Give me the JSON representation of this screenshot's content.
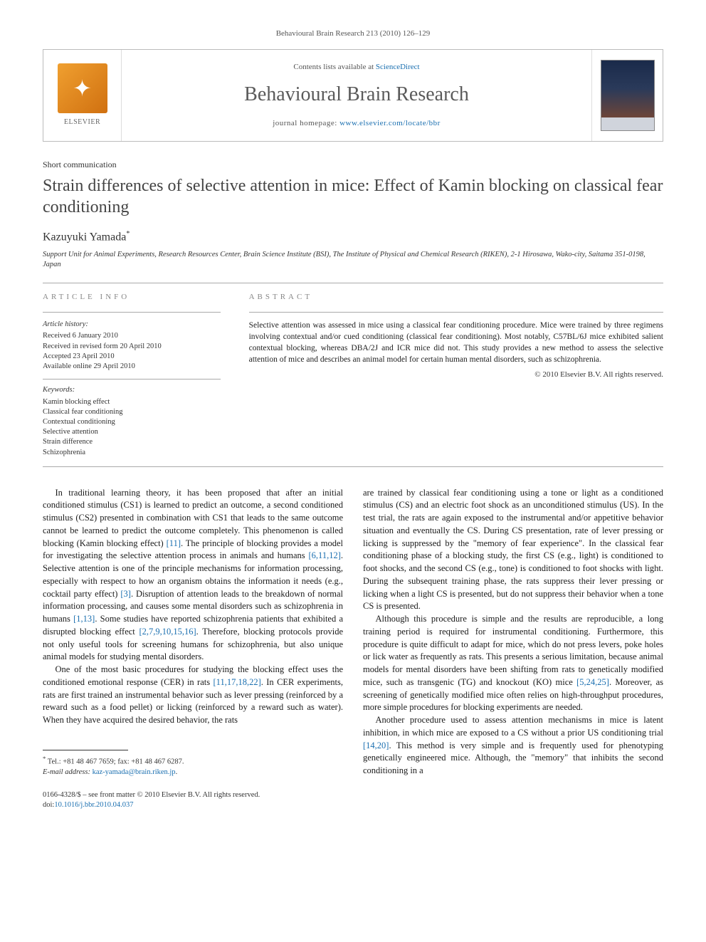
{
  "running_head": "Behavioural Brain Research 213 (2010) 126–129",
  "header": {
    "publisher": "ELSEVIER",
    "contents_prefix": "Contents lists available at ",
    "contents_link": "ScienceDirect",
    "journal_name": "Behavioural Brain Research",
    "homepage_prefix": "journal homepage: ",
    "homepage_link": "www.elsevier.com/locate/bbr"
  },
  "article": {
    "type": "Short communication",
    "title": "Strain differences of selective attention in mice: Effect of Kamin blocking on classical fear conditioning",
    "author": "Kazuyuki Yamada",
    "author_marker": "*",
    "affiliation": "Support Unit for Animal Experiments, Research Resources Center, Brain Science Institute (BSI), The Institute of Physical and Chemical Research (RIKEN), 2-1 Hirosawa, Wako-city, Saitama 351-0198, Japan"
  },
  "info": {
    "section_label": "ARTICLE INFO",
    "history_label": "Article history:",
    "history": [
      "Received 6 January 2010",
      "Received in revised form 20 April 2010",
      "Accepted 23 April 2010",
      "Available online 29 April 2010"
    ],
    "keywords_label": "Keywords:",
    "keywords": [
      "Kamin blocking effect",
      "Classical fear conditioning",
      "Contextual conditioning",
      "Selective attention",
      "Strain difference",
      "Schizophrenia"
    ]
  },
  "abstract": {
    "section_label": "ABSTRACT",
    "text": "Selective attention was assessed in mice using a classical fear conditioning procedure. Mice were trained by three regimens involving contextual and/or cued conditioning (classical fear conditioning). Most notably, C57BL/6J mice exhibited salient contextual blocking, whereas DBA/2J and ICR mice did not. This study provides a new method to assess the selective attention of mice and describes an animal model for certain human mental disorders, such as schizophrenia.",
    "copyright": "© 2010 Elsevier B.V. All rights reserved."
  },
  "body": {
    "col1": {
      "p1a": "In traditional learning theory, it has been proposed that after an initial conditioned stimulus (CS1) is learned to predict an outcome, a second conditioned stimulus (CS2) presented in combination with CS1 that leads to the same outcome cannot be learned to predict the outcome completely. This phenomenon is called blocking (Kamin blocking effect) ",
      "r1": "[11]",
      "p1b": ". The principle of blocking provides a model for investigating the selective attention process in animals and humans ",
      "r2": "[6,11,12]",
      "p1c": ". Selective attention is one of the principle mechanisms for information processing, especially with respect to how an organism obtains the information it needs (e.g., cocktail party effect) ",
      "r3": "[3]",
      "p1d": ". Disruption of attention leads to the breakdown of normal information processing, and causes some mental disorders such as schizophrenia in humans ",
      "r4": "[1,13]",
      "p1e": ". Some studies have reported schizophrenia patients that exhibited a disrupted blocking effect ",
      "r5": "[2,7,9,10,15,16]",
      "p1f": ". Therefore, blocking protocols provide not only useful tools for screening humans for schizophrenia, but also unique animal models for studying mental disorders.",
      "p2a": "One of the most basic procedures for studying the blocking effect uses the conditioned emotional response (CER) in rats ",
      "r6": "[11,17,18,22]",
      "p2b": ". In CER experiments, rats are first trained an instrumental behavior such as lever pressing (reinforced by a reward such as a food pellet) or licking (reinforced by a reward such as water). When they have acquired the desired behavior, the rats"
    },
    "col2": {
      "p1": "are trained by classical fear conditioning using a tone or light as a conditioned stimulus (CS) and an electric foot shock as an unconditioned stimulus (US). In the test trial, the rats are again exposed to the instrumental and/or appetitive behavior situation and eventually the CS. During CS presentation, rate of lever pressing or licking is suppressed by the \"memory of fear experience\". In the classical fear conditioning phase of a blocking study, the first CS (e.g., light) is conditioned to foot shocks, and the second CS (e.g., tone) is conditioned to foot shocks with light. During the subsequent training phase, the rats suppress their lever pressing or licking when a light CS is presented, but do not suppress their behavior when a tone CS is presented.",
      "p2a": "Although this procedure is simple and the results are reproducible, a long training period is required for instrumental conditioning. Furthermore, this procedure is quite difficult to adapt for mice, which do not press levers, poke holes or lick water as frequently as rats. This presents a serious limitation, because animal models for mental disorders have been shifting from rats to genetically modified mice, such as transgenic (TG) and knockout (KO) mice ",
      "r7": "[5,24,25]",
      "p2b": ". Moreover, as screening of genetically modified mice often relies on high-throughput procedures, more simple procedures for blocking experiments are needed.",
      "p3a": "Another procedure used to assess attention mechanisms in mice is latent inhibition, in which mice are exposed to a CS without a prior US conditioning trial ",
      "r8": "[14,20]",
      "p3b": ". This method is very simple and is frequently used for phenotyping genetically engineered mice. Although, the \"memory\" that inhibits the second conditioning in a"
    }
  },
  "footer": {
    "corr_marker": "*",
    "corr_text": " Tel.: +81 48 467 7659; fax: +81 48 467 6287.",
    "email_label": "E-mail address: ",
    "email": "kaz-yamada@brain.riken.jp",
    "email_suffix": ".",
    "issn_line": "0166-4328/$ – see front matter © 2010 Elsevier B.V. All rights reserved.",
    "doi_prefix": "doi:",
    "doi": "10.1016/j.bbr.2010.04.037"
  },
  "colors": {
    "link": "#1a6fb0",
    "text": "#1a1a1a",
    "muted": "#555555",
    "rule": "#aaaaaa"
  }
}
